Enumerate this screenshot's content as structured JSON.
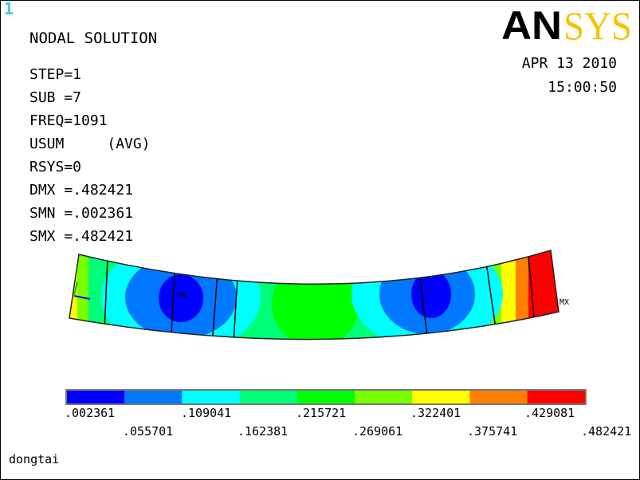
{
  "window_number": "1",
  "title": "NODAL SOLUTION",
  "params": {
    "step": "STEP=1",
    "sub": "SUB =7",
    "freq": "FREQ=1091",
    "usum": "USUM",
    "avg": "(AVG)",
    "rsys": "RSYS=0",
    "dmx": "DMX =.482421",
    "smn": "SMN =.002361",
    "smx": "SMX =.482421"
  },
  "date": "APR 13 2010",
  "time": "15:00:50",
  "logo": {
    "text": "ANSYS",
    "bold_part": "AN",
    "light_part": "SYS",
    "dark_color": "#000000",
    "accent_color": "#f5c400"
  },
  "markers": {
    "min": "MN",
    "max": "MX"
  },
  "colorbar": {
    "colors": [
      "#0000ff",
      "#0078ff",
      "#00ffff",
      "#00ff78",
      "#00ff00",
      "#78ff00",
      "#ffff00",
      "#ff8000",
      "#ff0000"
    ],
    "labels_top": [
      ".002361",
      ".109041",
      ".215721",
      ".322401",
      ".429081"
    ],
    "labels_bottom": [
      ".055701",
      ".162381",
      ".269061",
      ".375741",
      ".482421"
    ]
  },
  "footer": "dongtai"
}
